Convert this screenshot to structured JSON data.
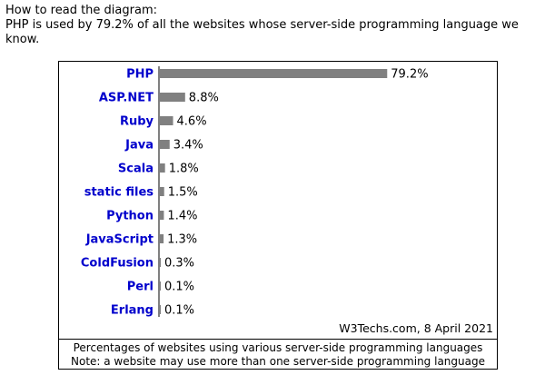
{
  "intro": {
    "line1": "How to read the diagram:",
    "line2": "PHP is used by 79.2% of all the websites whose server-side programming language we know."
  },
  "chart_data": {
    "type": "bar",
    "orientation": "horizontal",
    "categories": [
      "PHP",
      "ASP.NET",
      "Ruby",
      "Java",
      "Scala",
      "static files",
      "Python",
      "JavaScript",
      "ColdFusion",
      "Perl",
      "Erlang"
    ],
    "values": [
      79.2,
      8.8,
      4.6,
      3.4,
      1.8,
      1.5,
      1.4,
      1.3,
      0.3,
      0.1,
      0.1
    ],
    "value_labels": [
      "79.2%",
      "8.8%",
      "4.6%",
      "3.4%",
      "1.8%",
      "1.5%",
      "1.4%",
      "1.3%",
      "0.3%",
      "0.1%",
      "0.1%"
    ],
    "xlim": [
      0,
      100
    ],
    "grid": false,
    "legend": "none",
    "colors": {
      "bar": "#808080",
      "category_label": "#0000cc",
      "axis": "#000000"
    }
  },
  "source": "W3Techs.com, 8 April 2021",
  "caption": {
    "line1": "Percentages of websites using various server-side programming languages",
    "line2": "Note: a website may use more than one server-side programming language"
  }
}
